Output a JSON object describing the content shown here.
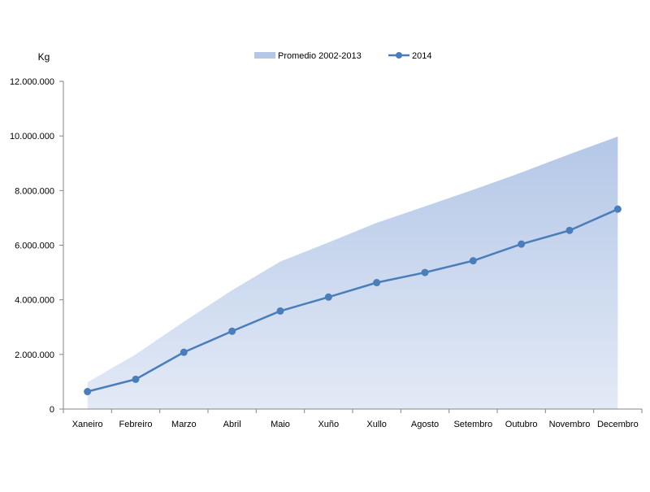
{
  "chart_data": {
    "type": "line",
    "title": "",
    "ylabel": "Kg",
    "xlabel": "",
    "categories": [
      "Xaneiro",
      "Febreiro",
      "Marzo",
      "Abril",
      "Maio",
      "Xuño",
      "Xullo",
      "Agosto",
      "Setembro",
      "Outubro",
      "Novembro",
      "Decembro"
    ],
    "series": [
      {
        "name": "Promedio 2002-2013",
        "kind": "area",
        "color": "#b4c7e7",
        "values": [
          980000,
          2000000,
          3200000,
          4350000,
          5400000,
          6100000,
          6820000,
          7420000,
          8030000,
          8660000,
          9330000,
          9980000
        ]
      },
      {
        "name": "2014",
        "kind": "line",
        "color": "#4a7ebb",
        "values": [
          640000,
          1090000,
          2080000,
          2850000,
          3590000,
          4100000,
          4630000,
          5000000,
          5430000,
          6040000,
          6540000,
          7320000
        ]
      }
    ],
    "ylim": [
      0,
      12000000
    ],
    "yticks": [
      "0",
      "2.000.000",
      "4.000.000",
      "6.000.000",
      "8.000.000",
      "10.000.000",
      "12.000.000"
    ],
    "ytick_values": [
      0,
      2000000,
      4000000,
      6000000,
      8000000,
      10000000,
      12000000
    ],
    "grid": false,
    "legend_position": "top-center"
  }
}
